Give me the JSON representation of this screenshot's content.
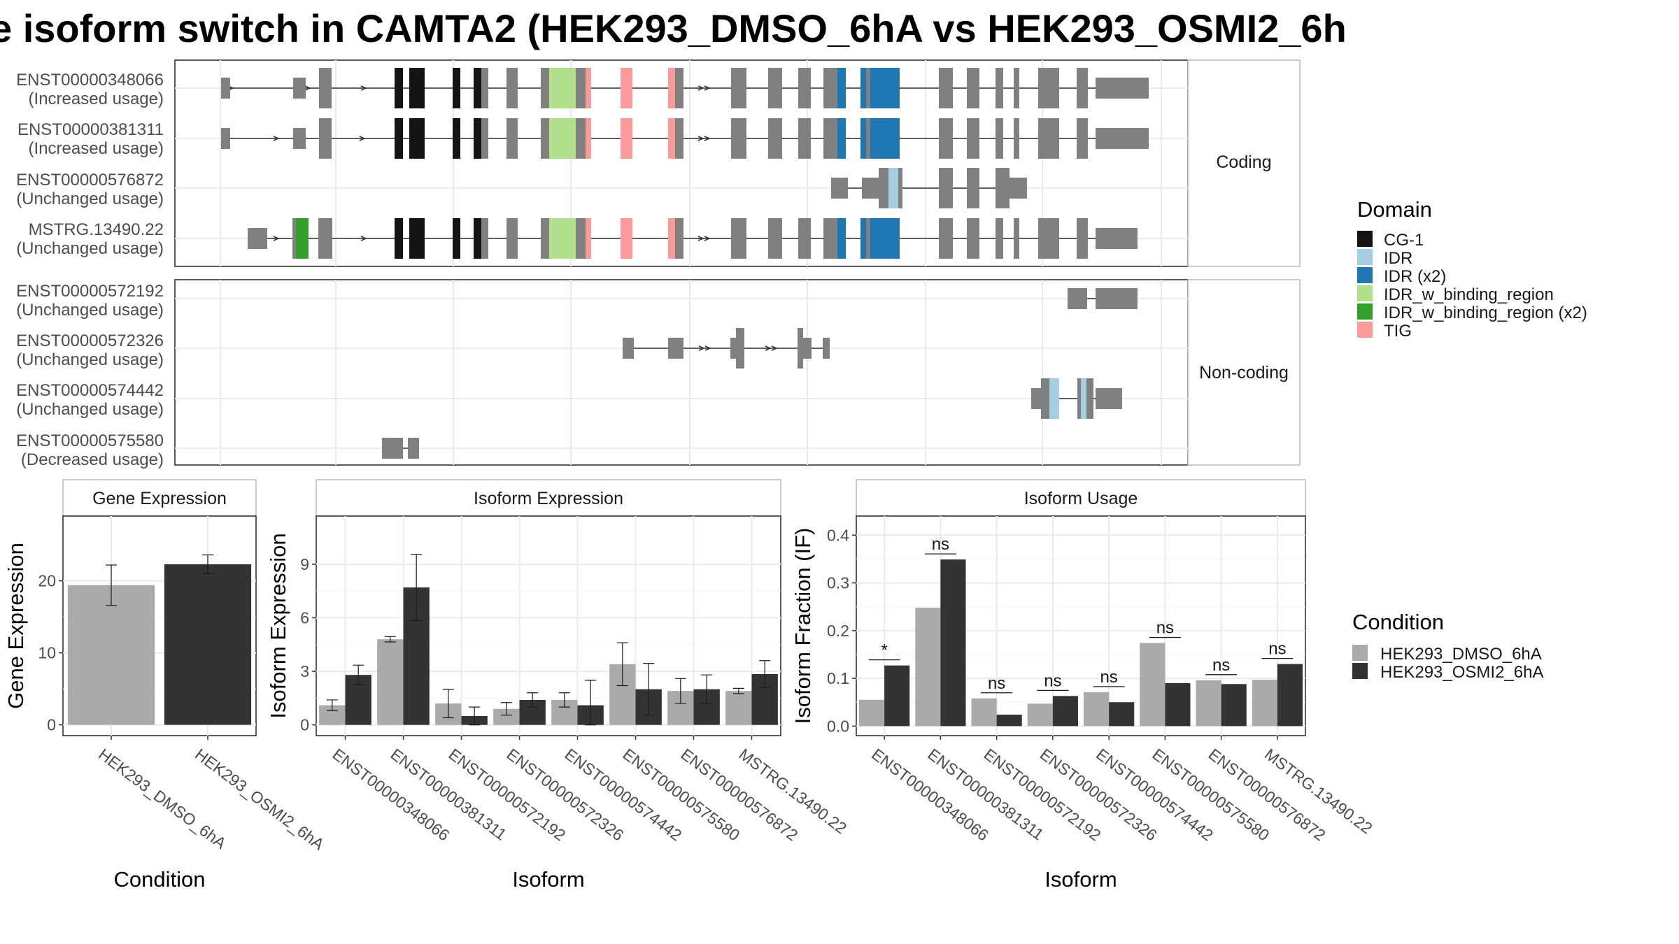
{
  "title": "e isoform switch in CAMTA2 (HEK293_DMSO_6hA vs HEK293_OSMI2_6h",
  "colors": {
    "exon": "#808080",
    "condition_1": "#aaaaaa",
    "condition_2": "#333333",
    "CG-1": "#141414",
    "IDR": "#a6cee3",
    "IDR (x2)": "#1f78b4",
    "IDR_w_binding_region": "#b2df8a",
    "IDR_w_binding_region (x2)": "#33a02c",
    "TIG": "#fb9a99"
  },
  "chart_data": [
    {
      "type": "gene-structure",
      "panels": [
        {
          "label": "Coding",
          "isoforms": [
            {
              "id": "ENST00000348066",
              "status": "(Increased usage)"
            },
            {
              "id": "ENST00000381311",
              "status": "(Increased usage)"
            },
            {
              "id": "ENST00000576872",
              "status": "(Unchanged usage)"
            },
            {
              "id": "MSTRG.13490.22",
              "status": "(Unchanged usage)"
            }
          ]
        },
        {
          "label": "Non-coding",
          "isoforms": [
            {
              "id": "ENST00000572192",
              "status": "(Unchanged usage)"
            },
            {
              "id": "ENST00000572326",
              "status": "(Unchanged usage)"
            },
            {
              "id": "ENST00000574442",
              "status": "(Unchanged usage)"
            },
            {
              "id": "ENST00000575580",
              "status": "(Decreased usage)"
            }
          ]
        }
      ],
      "legend": {
        "title": "Domain",
        "entries": [
          "CG-1",
          "IDR",
          "IDR (x2)",
          "IDR_w_binding_region",
          "IDR_w_binding_region (x2)",
          "TIG"
        ]
      }
    },
    {
      "type": "bar",
      "title": "Gene Expression",
      "xlabel": "Condition",
      "ylabel": "Gene Expression",
      "categories": [
        "HEK293_DMSO_6hA",
        "HEK293_OSMI2_6hA"
      ],
      "values": [
        19.4,
        22.3
      ],
      "errors": [
        2.8,
        1.3
      ],
      "ylim": [
        -1.5,
        29
      ],
      "yticks": [
        0,
        10,
        20
      ]
    },
    {
      "type": "bar",
      "title": "Isoform Expression",
      "xlabel": "Isoform",
      "ylabel": "Isoform Expression",
      "categories": [
        "ENST00000348066",
        "ENST00000381311",
        "ENST00000572192",
        "ENST00000572326",
        "ENST00000574442",
        "ENST00000575580",
        "ENST00000576872",
        "MSTRG.13490.22"
      ],
      "series": [
        {
          "name": "HEK293_DMSO_6hA",
          "values": [
            1.1,
            4.8,
            1.2,
            0.9,
            1.4,
            3.4,
            1.9,
            1.9
          ],
          "errors": [
            0.3,
            0.15,
            0.8,
            0.35,
            0.4,
            1.2,
            0.7,
            0.15
          ]
        },
        {
          "name": "HEK293_OSMI2_6hA",
          "values": [
            2.8,
            7.7,
            0.5,
            1.4,
            1.1,
            2.0,
            2.0,
            2.85
          ],
          "errors": [
            0.55,
            1.85,
            0.5,
            0.4,
            1.4,
            1.45,
            0.8,
            0.75
          ]
        }
      ],
      "ylim": [
        -0.6,
        11.7
      ],
      "yticks": [
        0,
        3,
        6,
        9
      ]
    },
    {
      "type": "bar",
      "title": "Isoform Usage",
      "xlabel": "Isoform",
      "ylabel": "Isoform Fraction (IF)",
      "categories": [
        "ENST00000348066",
        "ENST00000381311",
        "ENST00000572192",
        "ENST00000572326",
        "ENST00000574442",
        "ENST00000575580",
        "ENST00000576872",
        "MSTRG.13490.22"
      ],
      "series": [
        {
          "name": "HEK293_DMSO_6hA",
          "values": [
            0.055,
            0.248,
            0.058,
            0.047,
            0.071,
            0.174,
            0.096,
            0.097
          ]
        },
        {
          "name": "HEK293_OSMI2_6hA",
          "values": [
            0.127,
            0.349,
            0.024,
            0.063,
            0.05,
            0.09,
            0.088,
            0.13
          ]
        }
      ],
      "significance": [
        "*",
        "ns",
        "ns",
        "ns",
        "ns",
        "ns",
        "ns",
        "ns"
      ],
      "ylim": [
        -0.02,
        0.44
      ],
      "yticks": [
        0.0,
        0.1,
        0.2,
        0.3,
        0.4
      ],
      "ytick_labels": [
        "0.0",
        "0.1",
        "0.2",
        "0.3",
        "0.4"
      ]
    }
  ],
  "condition_legend": {
    "title": "Condition",
    "entries": [
      "HEK293_DMSO_6hA",
      "HEK293_OSMI2_6hA"
    ]
  }
}
